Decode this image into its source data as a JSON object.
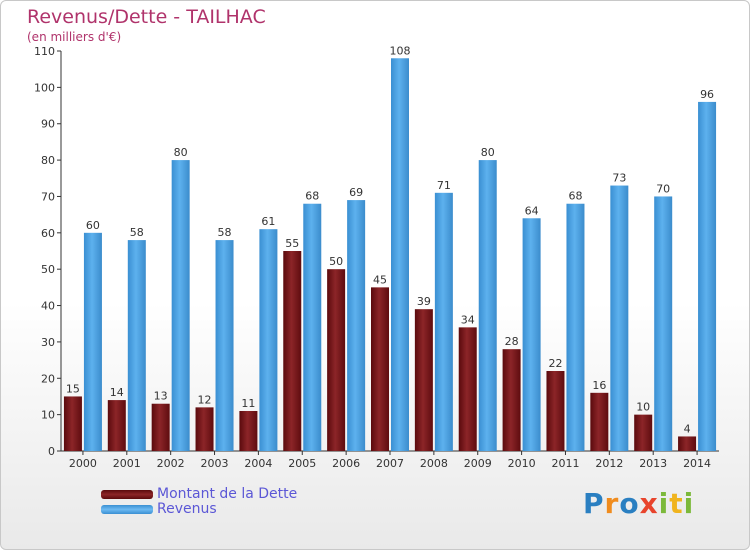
{
  "chart_data": {
    "type": "bar",
    "title": "Revenus/Dette - TAILHAC",
    "subtitle": "(en milliers d'€)",
    "xlabel": "",
    "ylabel": "",
    "ylim": [
      0,
      110
    ],
    "yticks": [
      0,
      10,
      20,
      30,
      40,
      50,
      60,
      70,
      80,
      90,
      100,
      110
    ],
    "grid": false,
    "legend_position": "bottom-left",
    "categories": [
      "2000",
      "2001",
      "2002",
      "2003",
      "2004",
      "2005",
      "2006",
      "2007",
      "2008",
      "2009",
      "2010",
      "2011",
      "2012",
      "2013",
      "2014"
    ],
    "series": [
      {
        "name": "Montant de la Dette",
        "color": "#7a1518",
        "values": [
          15,
          14,
          13,
          12,
          11,
          55,
          50,
          45,
          39,
          34,
          28,
          22,
          16,
          10,
          4
        ]
      },
      {
        "name": "Revenus",
        "color": "#4a9fe0",
        "values": [
          60,
          58,
          80,
          58,
          61,
          68,
          69,
          108,
          71,
          80,
          64,
          68,
          73,
          70,
          96
        ]
      }
    ]
  },
  "logo": {
    "letters": [
      {
        "ch": "P",
        "color": "#2a7fc1"
      },
      {
        "ch": "r",
        "color": "#f08c1e"
      },
      {
        "ch": "o",
        "color": "#2a7fc1"
      },
      {
        "ch": "x",
        "color": "#e8442c"
      },
      {
        "ch": "i",
        "color": "#7cb93a"
      },
      {
        "ch": "t",
        "color": "#f0b41e"
      },
      {
        "ch": "i",
        "color": "#7cb93a"
      }
    ]
  }
}
